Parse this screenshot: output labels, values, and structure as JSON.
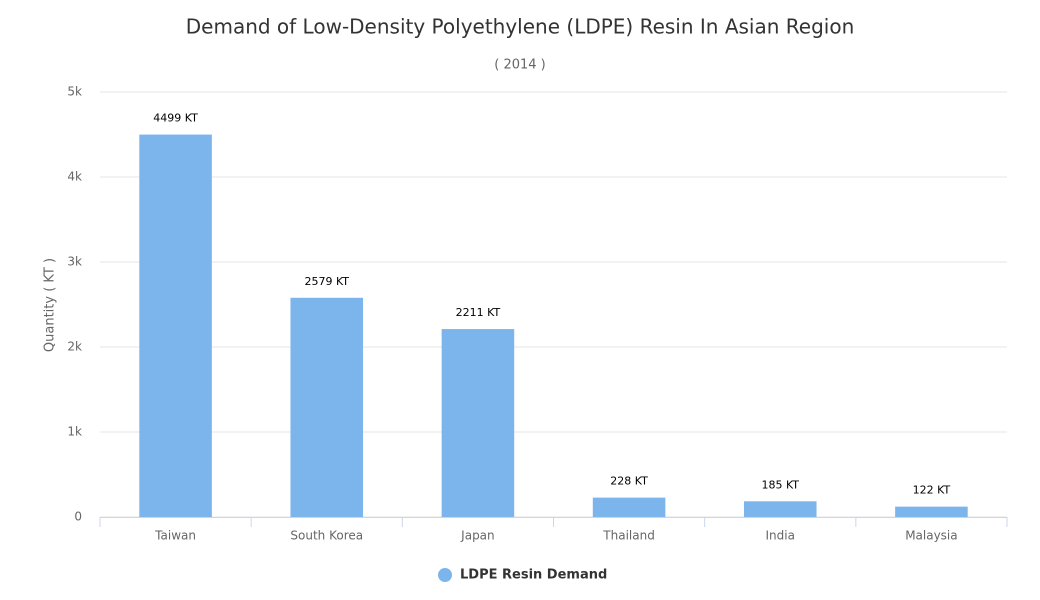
{
  "chart_data": {
    "type": "bar",
    "title": "Demand of Low-Density Polyethylene (LDPE) Resin In Asian Region",
    "subtitle": "( 2014 )",
    "y_label": "Quantity ( KT )",
    "categories": [
      "Taiwan",
      "South Korea",
      "Japan",
      "Thailand",
      "India",
      "Malaysia"
    ],
    "series": [
      {
        "name": "LDPE Resin Demand",
        "color": "#7cb5ec",
        "values": [
          4499,
          2579,
          2211,
          228,
          185,
          122
        ],
        "value_labels": [
          "4499 KT",
          "2579 KT",
          "2211 KT",
          "228 KT",
          "185 KT",
          "122 KT"
        ]
      }
    ],
    "ylim": [
      0,
      5000
    ],
    "yticks": [
      0,
      {
        "value": 1000,
        "label": "1k"
      },
      {
        "value": 2000,
        "label": "2k"
      },
      {
        "value": 3000,
        "label": "3k"
      },
      {
        "value": 4000,
        "label": "4k"
      },
      {
        "value": 5000,
        "label": "5k"
      }
    ],
    "grid": true,
    "legend": "bottom"
  }
}
